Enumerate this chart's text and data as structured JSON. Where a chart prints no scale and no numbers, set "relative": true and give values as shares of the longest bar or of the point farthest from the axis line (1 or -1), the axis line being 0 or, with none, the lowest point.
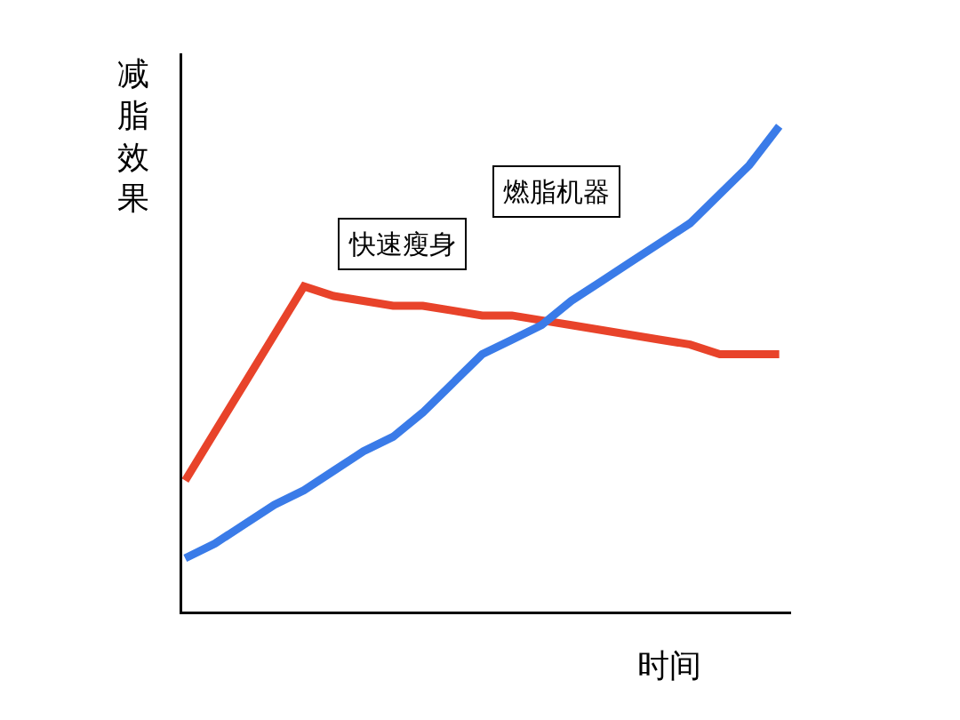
{
  "chart_data": {
    "type": "line",
    "relative": true,
    "xlabel": "时间",
    "ylabel": "减脂效果",
    "categories": [
      null,
      null,
      null,
      null,
      null,
      null,
      null,
      null,
      null,
      null,
      null,
      null,
      null,
      null,
      null,
      null,
      null,
      null,
      null,
      null,
      null
    ],
    "series": [
      {
        "color": "#e8432a",
        "values": [
          0.27,
          0.37,
          0.47,
          0.57,
          0.67,
          0.65,
          0.64,
          0.63,
          0.63,
          0.62,
          0.61,
          0.61,
          0.6,
          0.59,
          0.58,
          0.57,
          0.56,
          0.55,
          0.53,
          0.53,
          0.53
        ]
      },
      {
        "color": "#3a7be8",
        "values": [
          0.11,
          0.14,
          0.18,
          0.22,
          0.25,
          0.29,
          0.33,
          0.36,
          0.41,
          0.47,
          0.53,
          0.56,
          0.59,
          0.64,
          0.68,
          0.72,
          0.76,
          0.8,
          0.86,
          0.92,
          1.0
        ]
      }
    ],
    "annotations": [
      "快速瘦身",
      "燃脂机器"
    ],
    "marker": "none",
    "line_style": "solid"
  }
}
